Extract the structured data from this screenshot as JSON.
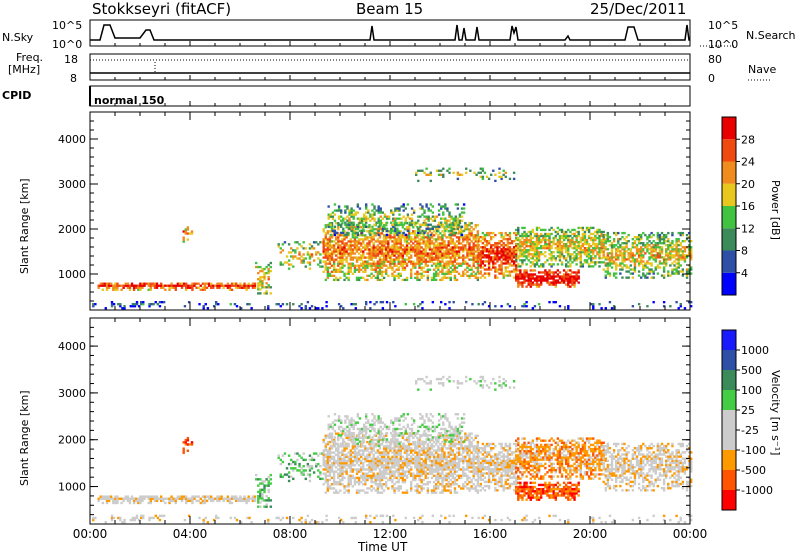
{
  "header": {
    "station": "Stokkseyri (fitACF)",
    "beam": "Beam 15",
    "date": "25/Dec/2011"
  },
  "top_panels": {
    "nsky_label": "N.Sky",
    "nsky_top": "10^5",
    "nsky_bottom": "10^0",
    "nsearch_label": "N.Search",
    "nsearch_top": "10^5",
    "nsearch_bottom": "10^0",
    "freq_label": "Freq.",
    "freq_unit": "[MHz]",
    "freq_top": "18",
    "freq_bottom": "8",
    "nave_label": "Nave",
    "nave_top": "80",
    "nave_bottom": "0",
    "cpid_label": "CPID",
    "cpid_value": "normal 150"
  },
  "colors": {
    "power_scale": [
      "#0000ff",
      "#2d4fa6",
      "#3a8a5a",
      "#41c241",
      "#e8c81e",
      "#f08c1e",
      "#f04a10",
      "#e80000"
    ],
    "velocity_scale": [
      "#ff0000",
      "#ff5500",
      "#ff9900",
      "#cccccc",
      "#cccccc",
      "#44cc44",
      "#3a8a5a",
      "#2d4fa6",
      "#1a1aff"
    ]
  },
  "chart_data": [
    {
      "type": "heatmap",
      "name": "power",
      "xlabel": "Time UT",
      "ylabel": "Slant Range [km]",
      "xlim": [
        "00:00",
        "24:00"
      ],
      "xticks": [
        "00:00",
        "04:00",
        "08:00",
        "12:00",
        "16:00",
        "20:00",
        "00:00"
      ],
      "ylim": [
        200,
        4600
      ],
      "yticks": [
        1000,
        2000,
        3000,
        4000
      ],
      "colorbar": {
        "label": "Power [dB]",
        "ticks": [
          "4",
          "8",
          "12",
          "16",
          "20",
          "24",
          "28"
        ],
        "range": [
          0,
          30
        ]
      }
    },
    {
      "type": "heatmap",
      "name": "velocity",
      "xlabel": "Time UT",
      "ylabel": "Slant Range [km]",
      "xlim": [
        "00:00",
        "24:00"
      ],
      "xticks": [
        "00:00",
        "04:00",
        "08:00",
        "12:00",
        "16:00",
        "20:00",
        "00:00"
      ],
      "ylim": [
        200,
        4600
      ],
      "yticks": [
        1000,
        2000,
        3000,
        4000
      ],
      "colorbar": {
        "label": "Velocity [m s⁻¹]",
        "ticks": [
          "1000",
          "500",
          "100",
          "25",
          "-25",
          "-100",
          "-500",
          "-1000"
        ]
      }
    }
  ]
}
